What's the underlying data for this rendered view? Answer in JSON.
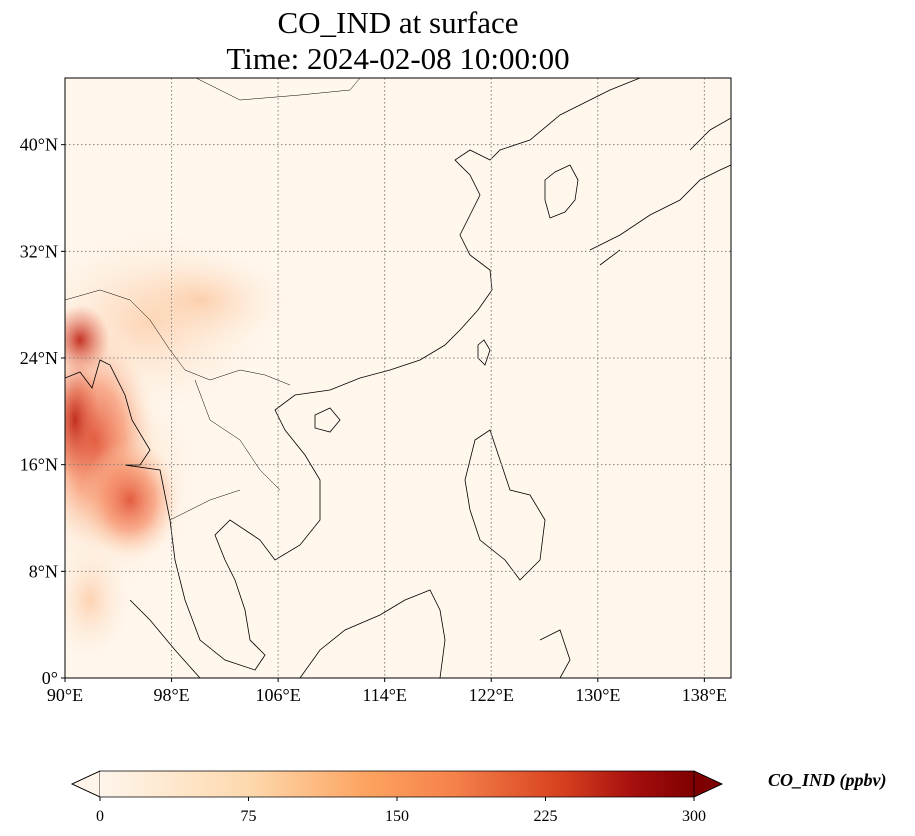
{
  "title": {
    "line1": "CO_IND at surface",
    "line2": "Time: 2024-02-08 10:00:00"
  },
  "map": {
    "lon_range": [
      90,
      140
    ],
    "lat_range": [
      0,
      45
    ],
    "lon_ticks": [
      {
        "value": 90,
        "label": "90°E"
      },
      {
        "value": 98,
        "label": "98°E"
      },
      {
        "value": 106,
        "label": "106°E"
      },
      {
        "value": 114,
        "label": "114°E"
      },
      {
        "value": 122,
        "label": "122°E"
      },
      {
        "value": 130,
        "label": "130°E"
      },
      {
        "value": 138,
        "label": "138°E"
      }
    ],
    "lat_ticks": [
      {
        "value": 0,
        "label": "0°"
      },
      {
        "value": 8,
        "label": "8°N"
      },
      {
        "value": 16,
        "label": "16°N"
      },
      {
        "value": 24,
        "label": "24°N"
      },
      {
        "value": 32,
        "label": "32°N"
      },
      {
        "value": 40,
        "label": "40°N"
      }
    ],
    "gridlines": true
  },
  "colorbar": {
    "label": "CO_IND (ppbv)",
    "min": 0,
    "max": 300,
    "extend": "both",
    "ticks": [
      {
        "value": 0,
        "label": "0"
      },
      {
        "value": 75,
        "label": "75"
      },
      {
        "value": 150,
        "label": "150"
      },
      {
        "value": 225,
        "label": "225"
      },
      {
        "value": 300,
        "label": "300"
      }
    ],
    "colors": {
      "low": "#fff5eb",
      "mid_low": "#fdc18a",
      "mid": "#f4804a",
      "mid_high": "#d63f1e",
      "high": "#7f0000"
    }
  }
}
